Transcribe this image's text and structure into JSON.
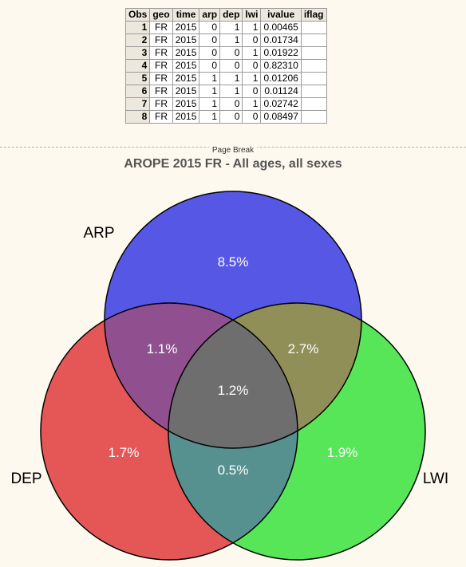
{
  "table": {
    "headers": [
      "Obs",
      "geo",
      "time",
      "arp",
      "dep",
      "lwi",
      "ivalue",
      "iflag"
    ],
    "rows": [
      [
        "1",
        "FR",
        "2015",
        "0",
        "1",
        "1",
        "0.00465",
        ""
      ],
      [
        "2",
        "FR",
        "2015",
        "0",
        "1",
        "0",
        "0.01734",
        ""
      ],
      [
        "3",
        "FR",
        "2015",
        "0",
        "0",
        "1",
        "0.01922",
        ""
      ],
      [
        "4",
        "FR",
        "2015",
        "0",
        "0",
        "0",
        "0.82310",
        ""
      ],
      [
        "5",
        "FR",
        "2015",
        "1",
        "1",
        "1",
        "0.01206",
        ""
      ],
      [
        "6",
        "FR",
        "2015",
        "1",
        "1",
        "0",
        "0.01124",
        ""
      ],
      [
        "7",
        "FR",
        "2015",
        "1",
        "0",
        "1",
        "0.02742",
        ""
      ],
      [
        "8",
        "FR",
        "2015",
        "1",
        "0",
        "0",
        "0.08497",
        ""
      ]
    ]
  },
  "page_break_label": "Page Break",
  "venn": {
    "title": "AROPE 2015 FR - All ages, all sexes",
    "sets": [
      {
        "label": "ARP",
        "color": "#5757e6"
      },
      {
        "label": "DEP",
        "color": "#e55757"
      },
      {
        "label": "LWI",
        "color": "#57e657"
      }
    ],
    "regions": {
      "arp_only": "8.5%",
      "arp_dep": "1.1%",
      "arp_lwi": "2.7%",
      "all": "1.2%",
      "dep_only": "1.7%",
      "dep_lwi": "0.5%",
      "lwi_only": "1.9%"
    },
    "colors": {
      "arp_dep": "#905090",
      "arp_lwi": "#908f57",
      "dep_lwi": "#56908f",
      "all": "#6e6e6e"
    }
  }
}
